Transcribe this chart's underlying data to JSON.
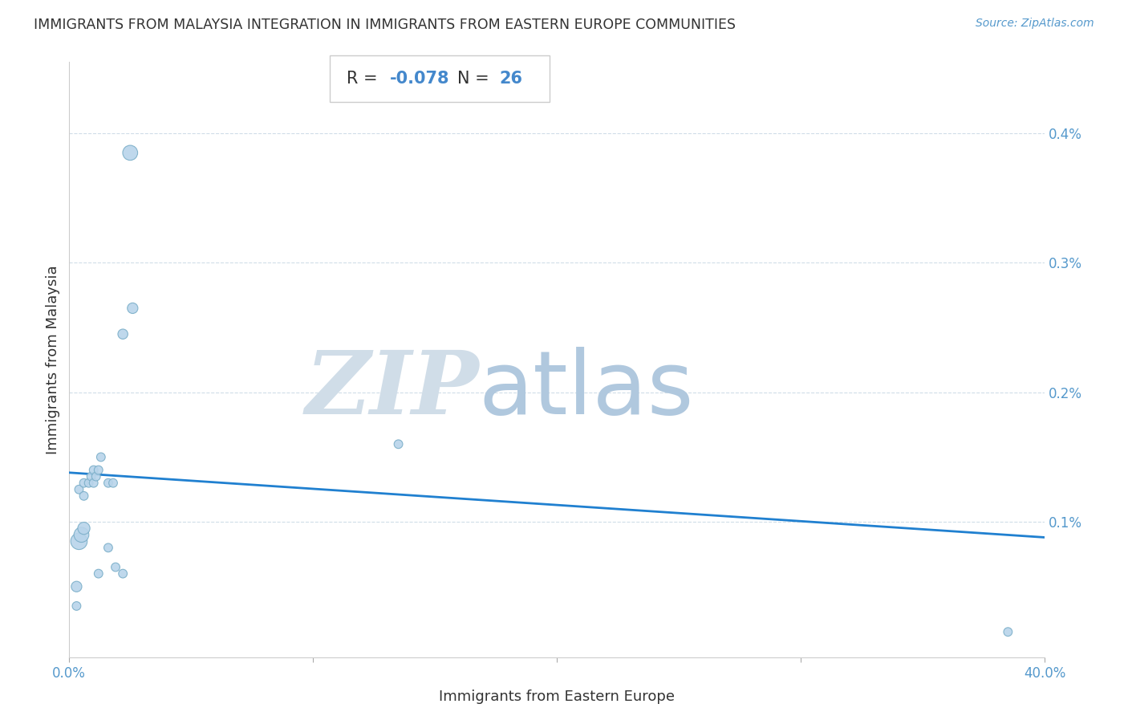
{
  "title": "IMMIGRANTS FROM MALAYSIA INTEGRATION IN IMMIGRANTS FROM EASTERN EUROPE COMMUNITIES",
  "source": "Source: ZipAtlas.com",
  "xlabel": "Immigrants from Eastern Europe",
  "ylabel": "Immigrants from Malaysia",
  "R": -0.078,
  "N": 26,
  "watermark_zip": "ZIP",
  "watermark_atlas": "atlas",
  "xlim": [
    0.0,
    0.4
  ],
  "ylim": [
    -5e-05,
    0.00455
  ],
  "xticks": [
    0.0,
    0.1,
    0.2,
    0.3,
    0.4
  ],
  "xtick_labels": [
    "0.0%",
    "",
    "",
    "",
    "40.0%"
  ],
  "yticks": [
    0.001,
    0.002,
    0.003,
    0.004
  ],
  "ytick_labels": [
    "0.1%",
    "0.2%",
    "0.3%",
    "0.4%"
  ],
  "scatter_x": [
    0.025,
    0.022,
    0.026,
    0.004,
    0.006,
    0.006,
    0.008,
    0.009,
    0.01,
    0.01,
    0.011,
    0.012,
    0.013,
    0.016,
    0.018,
    0.004,
    0.005,
    0.006,
    0.012,
    0.016,
    0.019,
    0.022,
    0.135,
    0.385,
    0.003,
    0.003
  ],
  "scatter_y": [
    0.00385,
    0.00245,
    0.00265,
    0.00125,
    0.0012,
    0.0013,
    0.0013,
    0.00135,
    0.0013,
    0.0014,
    0.00135,
    0.0014,
    0.0015,
    0.0013,
    0.0013,
    0.00085,
    0.0009,
    0.00095,
    0.0006,
    0.0008,
    0.00065,
    0.0006,
    0.0016,
    0.00015,
    0.0005,
    0.00035
  ],
  "scatter_sizes": [
    180,
    80,
    90,
    60,
    60,
    60,
    60,
    60,
    60,
    60,
    60,
    60,
    60,
    60,
    60,
    220,
    180,
    120,
    60,
    60,
    60,
    60,
    60,
    60,
    90,
    60
  ],
  "trend_x": [
    0.0,
    0.4
  ],
  "trend_y_start": 0.00138,
  "trend_y_end": 0.00088,
  "scatter_color": "#b8d4ea",
  "scatter_edge_color": "#7aaec8",
  "trend_color": "#2080d0",
  "title_color": "#333333",
  "axis_color": "#5599cc",
  "grid_color": "#d0dde8",
  "watermark_zip_color": "#d0dde8",
  "watermark_atlas_color": "#b0c8de",
  "box_color": "#ffffff",
  "box_edge_color": "#cccccc",
  "R_label_color": "#333333",
  "N_label_color": "#4488cc"
}
